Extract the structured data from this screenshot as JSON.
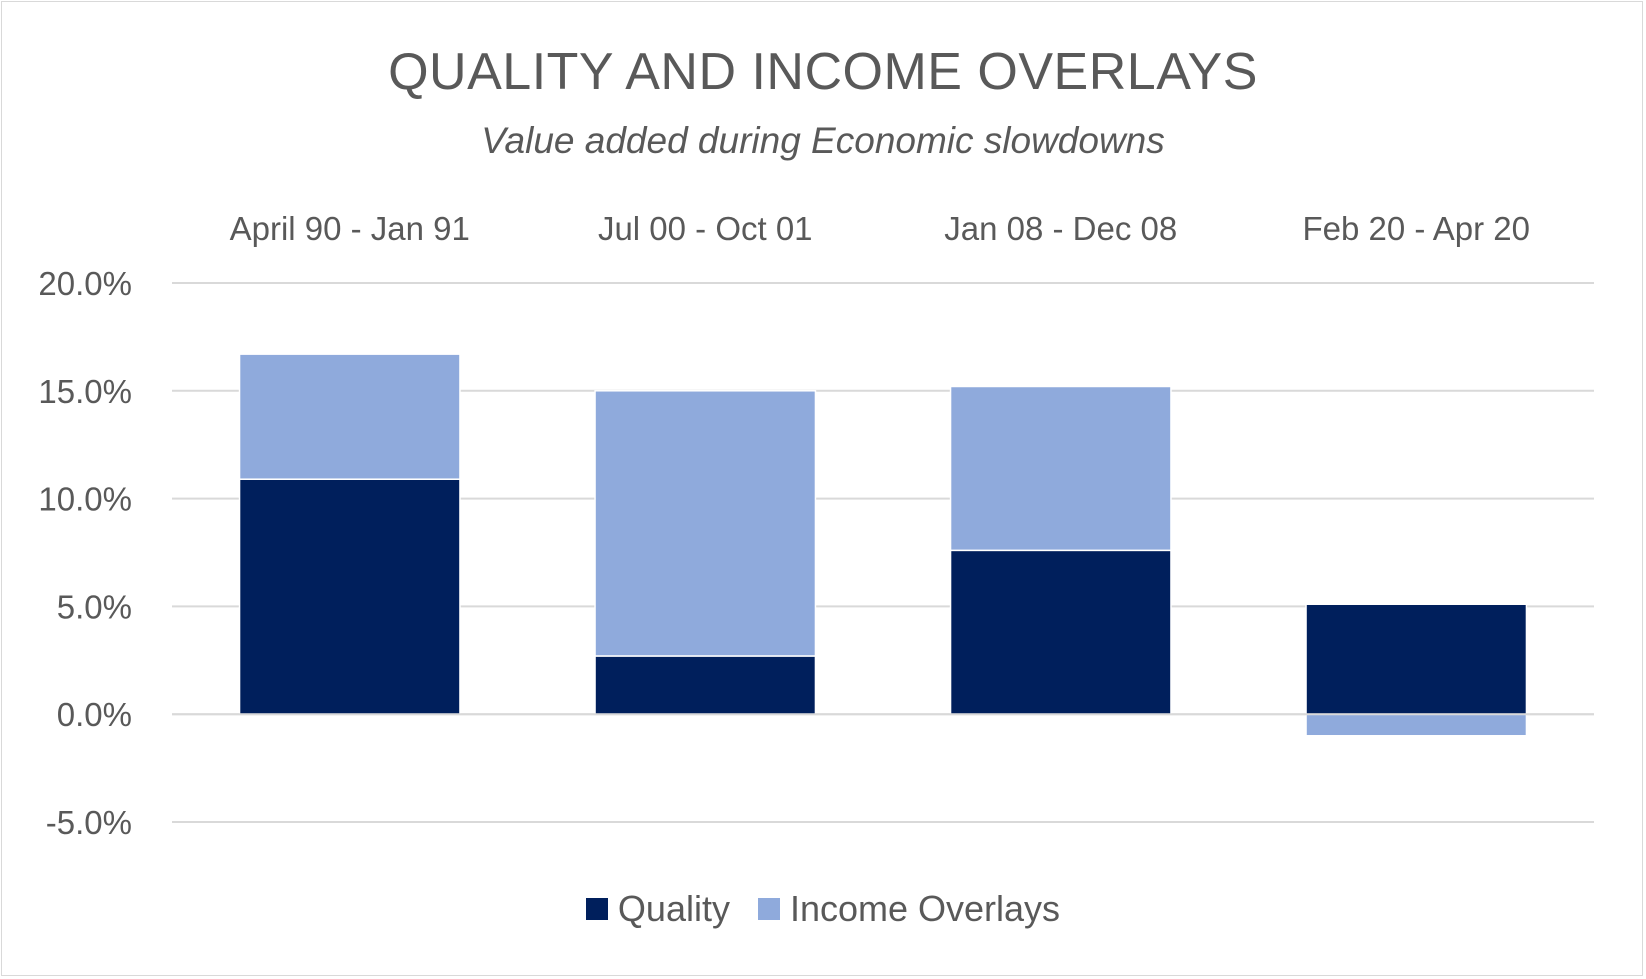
{
  "chart_data": {
    "type": "bar",
    "stacked": true,
    "title": "QUALITY AND INCOME OVERLAYS",
    "subtitle": "Value added during Economic slowdowns",
    "categories": [
      "April 90 - Jan 91",
      "Jul 00 - Oct 01",
      "Jan 08 - Dec 08",
      "Feb 20 - Apr 20"
    ],
    "series": [
      {
        "name": "Quality",
        "color": "#001f5c",
        "values": [
          10.9,
          2.7,
          7.6,
          5.1
        ]
      },
      {
        "name": "Income Overlays",
        "color": "#8faadc",
        "values": [
          5.8,
          12.3,
          7.6,
          -1.0
        ]
      }
    ],
    "ylim": [
      -5,
      20
    ],
    "yticks": [
      "20.0%",
      "15.0%",
      "10.0%",
      "5.0%",
      "0.0%",
      "-5.0%"
    ],
    "ytick_values": [
      20,
      15,
      10,
      5,
      0,
      -5
    ],
    "grid": true,
    "category_labels_position": "top",
    "legend_position": "bottom"
  }
}
